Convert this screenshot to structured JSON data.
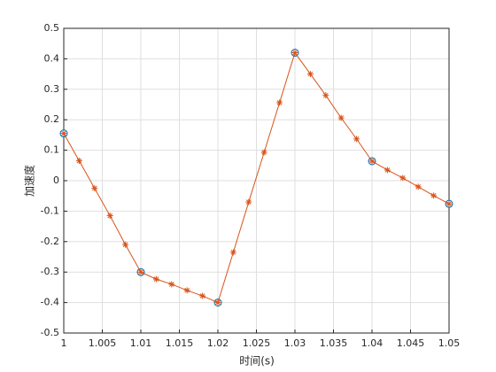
{
  "chart_data": {
    "type": "line",
    "xlabel": "时间(s)",
    "ylabel": "加速度",
    "xlim": [
      1,
      1.05
    ],
    "xticks": [
      1,
      1.005,
      1.01,
      1.015,
      1.02,
      1.025,
      1.03,
      1.035,
      1.04,
      1.045,
      1.05
    ],
    "ylim": [
      -0.5,
      0.5
    ],
    "yticks": [
      -0.5,
      -0.4,
      -0.3,
      -0.2,
      -0.1,
      0,
      0.1,
      0.2,
      0.3,
      0.4,
      0.5
    ],
    "grid": true,
    "series": [
      {
        "color": "#0072bd",
        "marker": "circle",
        "line": false,
        "x": [
          1,
          1.01,
          1.02,
          1.03,
          1.04,
          1.05
        ],
        "values": [
          0.155,
          -0.3,
          -0.4,
          0.42,
          0.064,
          -0.076
        ]
      },
      {
        "color": "#d95319",
        "marker": "asterisk",
        "line": true,
        "x": [
          1,
          1.002,
          1.004,
          1.006,
          1.008,
          1.01,
          1.012,
          1.014,
          1.016,
          1.018,
          1.02,
          1.022,
          1.024,
          1.026,
          1.028,
          1.03,
          1.032,
          1.034,
          1.036,
          1.038,
          1.04,
          1.042,
          1.044,
          1.046,
          1.048,
          1.05
        ],
        "values": [
          0.155,
          0.065,
          -0.025,
          -0.115,
          -0.21,
          -0.3,
          -0.323,
          -0.34,
          -0.36,
          -0.378,
          -0.4,
          -0.235,
          -0.07,
          0.093,
          0.256,
          0.42,
          0.35,
          0.28,
          0.206,
          0.137,
          0.064,
          0.035,
          0.009,
          -0.02,
          -0.049,
          -0.076
        ]
      }
    ]
  }
}
